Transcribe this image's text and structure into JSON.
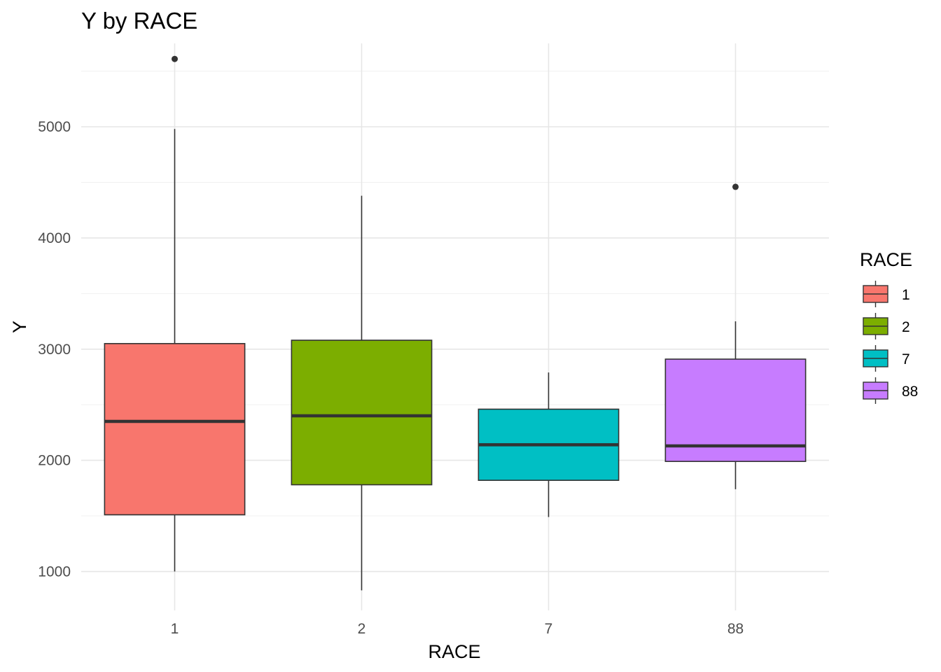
{
  "chart_data": {
    "type": "box",
    "title": "Y by RACE",
    "xlabel": "RACE",
    "ylabel": "Y",
    "categories": [
      "1",
      "2",
      "7",
      "88"
    ],
    "ylim": [
      650,
      5750
    ],
    "y_ticks": [
      1000,
      2000,
      3000,
      4000,
      5000
    ],
    "grid": true,
    "legend": {
      "title": "RACE",
      "position": "right"
    },
    "boxes": [
      {
        "category": "1",
        "min": 1000,
        "q1": 1510,
        "median": 2350,
        "q3": 3050,
        "max": 4980,
        "outliers": [
          5610
        ],
        "color": "#F8766D"
      },
      {
        "category": "2",
        "min": 830,
        "q1": 1780,
        "median": 2400,
        "q3": 3080,
        "max": 4380,
        "outliers": [],
        "color": "#7CAE00"
      },
      {
        "category": "7",
        "min": 1490,
        "q1": 1820,
        "median": 2140,
        "q3": 2460,
        "max": 2790,
        "outliers": [],
        "color": "#00BFC4"
      },
      {
        "category": "88",
        "min": 1740,
        "q1": 1990,
        "median": 2130,
        "q3": 2910,
        "max": 3250,
        "outliers": [
          4460
        ],
        "color": "#C77CFF"
      }
    ]
  }
}
